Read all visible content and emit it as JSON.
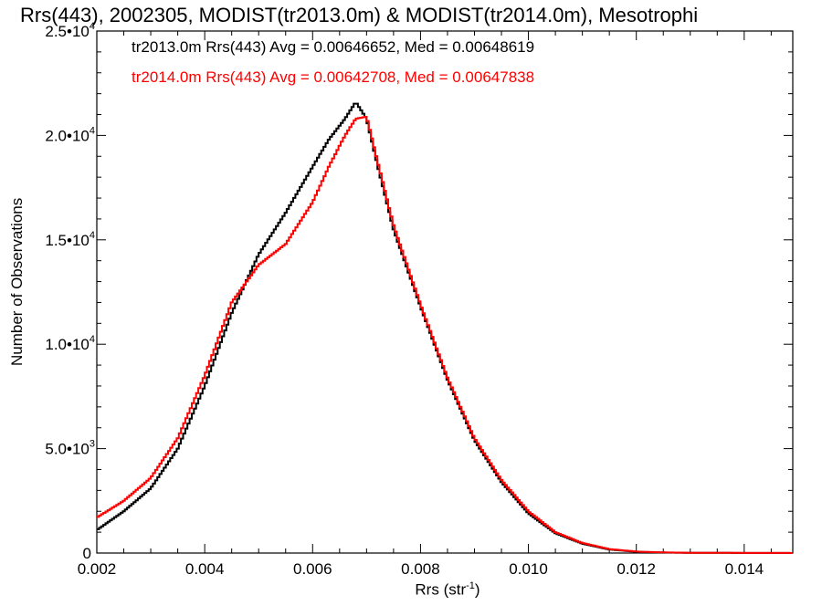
{
  "chart_data": {
    "type": "line",
    "title": "Rrs(443), 2002305, MODIST(tr2013.0m) & MODIST(tr2014.0m), Mesotrophi",
    "xlabel": "Rrs (str",
    "xlabel_sup": "-1",
    "xlabel_end": ")",
    "ylabel": "Number of Observations",
    "xlim": [
      0.002,
      0.0149
    ],
    "ylim": [
      0,
      25000
    ],
    "grid": false,
    "legend_placement": "top-left",
    "x_ticks": [
      "0.002",
      "0.004",
      "0.006",
      "0.008",
      "0.010",
      "0.012",
      "0.014"
    ],
    "y_ticks": [
      {
        "mant": "0",
        "exp": ""
      },
      {
        "mant": "5.0•10",
        "exp": "3"
      },
      {
        "mant": "1.0•10",
        "exp": "4"
      },
      {
        "mant": "1.5•10",
        "exp": "4"
      },
      {
        "mant": "2.0•10",
        "exp": "4"
      },
      {
        "mant": "2.5•10",
        "exp": "4"
      }
    ],
    "series": [
      {
        "name": "tr2013.0m Rrs(443) Avg = 0.00646652, Med = 0.00648619",
        "color": "#000000",
        "x": [
          0.002,
          0.0025,
          0.003,
          0.0035,
          0.004,
          0.0045,
          0.005,
          0.0055,
          0.006,
          0.0063,
          0.0066,
          0.0068,
          0.007,
          0.0072,
          0.0075,
          0.008,
          0.0085,
          0.009,
          0.0095,
          0.01,
          0.0105,
          0.011,
          0.0115,
          0.012,
          0.0125,
          0.013,
          0.014,
          0.0149
        ],
        "y": [
          1100,
          2000,
          3100,
          5000,
          8000,
          11500,
          14300,
          16300,
          18500,
          19800,
          20800,
          21600,
          20800,
          18600,
          15500,
          11800,
          8300,
          5400,
          3400,
          1900,
          950,
          450,
          170,
          60,
          25,
          12,
          5,
          2
        ]
      },
      {
        "name": "tr2014.0m Rrs(443) Avg = 0.00642708, Med = 0.00647838",
        "color": "#ff0000",
        "x": [
          0.002,
          0.0025,
          0.003,
          0.0035,
          0.004,
          0.0045,
          0.005,
          0.0055,
          0.006,
          0.0063,
          0.0066,
          0.0068,
          0.007,
          0.0072,
          0.0075,
          0.008,
          0.0085,
          0.009,
          0.0095,
          0.01,
          0.0105,
          0.011,
          0.0115,
          0.012,
          0.0125,
          0.013,
          0.014,
          0.0149
        ],
        "y": [
          1700,
          2500,
          3600,
          5500,
          8500,
          12000,
          13800,
          14800,
          16800,
          18500,
          20000,
          20800,
          20900,
          18800,
          15700,
          11900,
          8400,
          5500,
          3500,
          2000,
          1000,
          480,
          190,
          70,
          30,
          14,
          6,
          2
        ]
      }
    ]
  }
}
